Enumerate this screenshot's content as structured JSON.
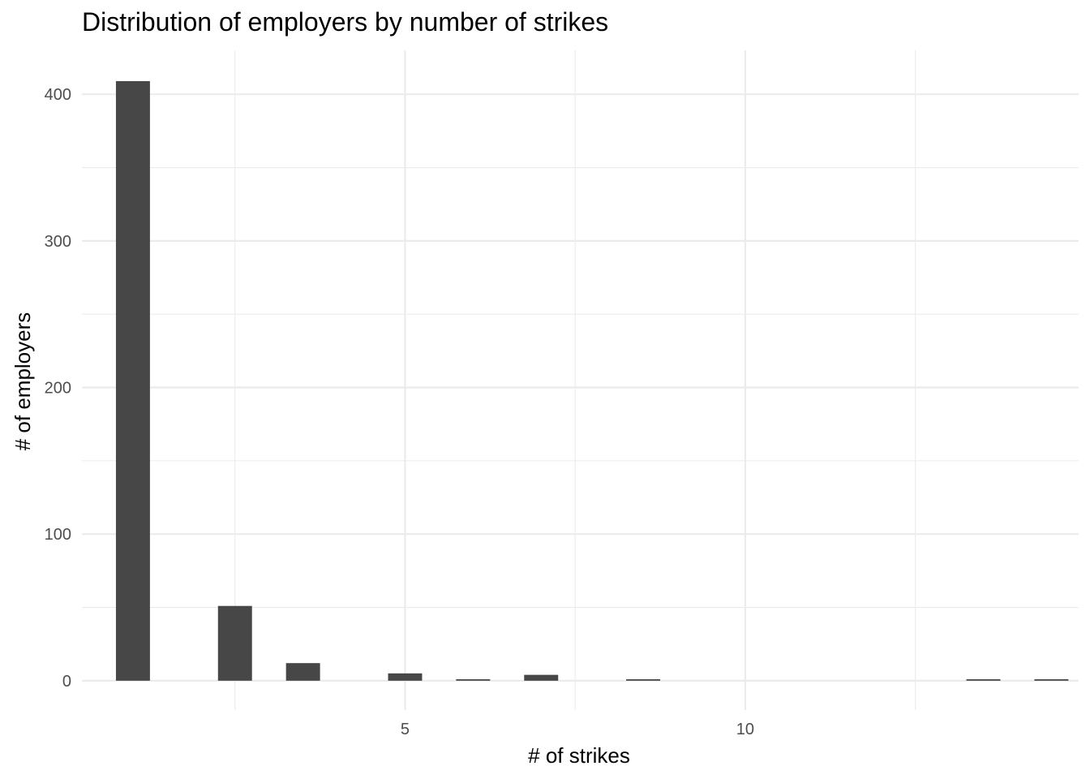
{
  "chart_data": {
    "type": "bar",
    "title": "Distribution of employers by number of strikes",
    "xlabel": "# of strikes",
    "ylabel": "# of employers",
    "x": [
      1,
      2.5,
      3.5,
      5,
      6,
      7,
      8.5,
      13.5,
      14.5
    ],
    "values": [
      409,
      51,
      12,
      5,
      1,
      4,
      1,
      1,
      1
    ],
    "bar_width": 0.5,
    "xlim": [
      0.25,
      14.9
    ],
    "ylim": [
      -20,
      430
    ],
    "x_major_ticks": [
      5,
      10
    ],
    "x_minor_ticks": [
      2.5,
      5,
      7.5,
      10,
      12.5
    ],
    "y_major_ticks": [
      0,
      100,
      200,
      300,
      400
    ],
    "y_minor_ticks": [
      50,
      150,
      250,
      350
    ],
    "grid": true,
    "bar_color": "#474747",
    "grid_color": "#ebebeb"
  }
}
